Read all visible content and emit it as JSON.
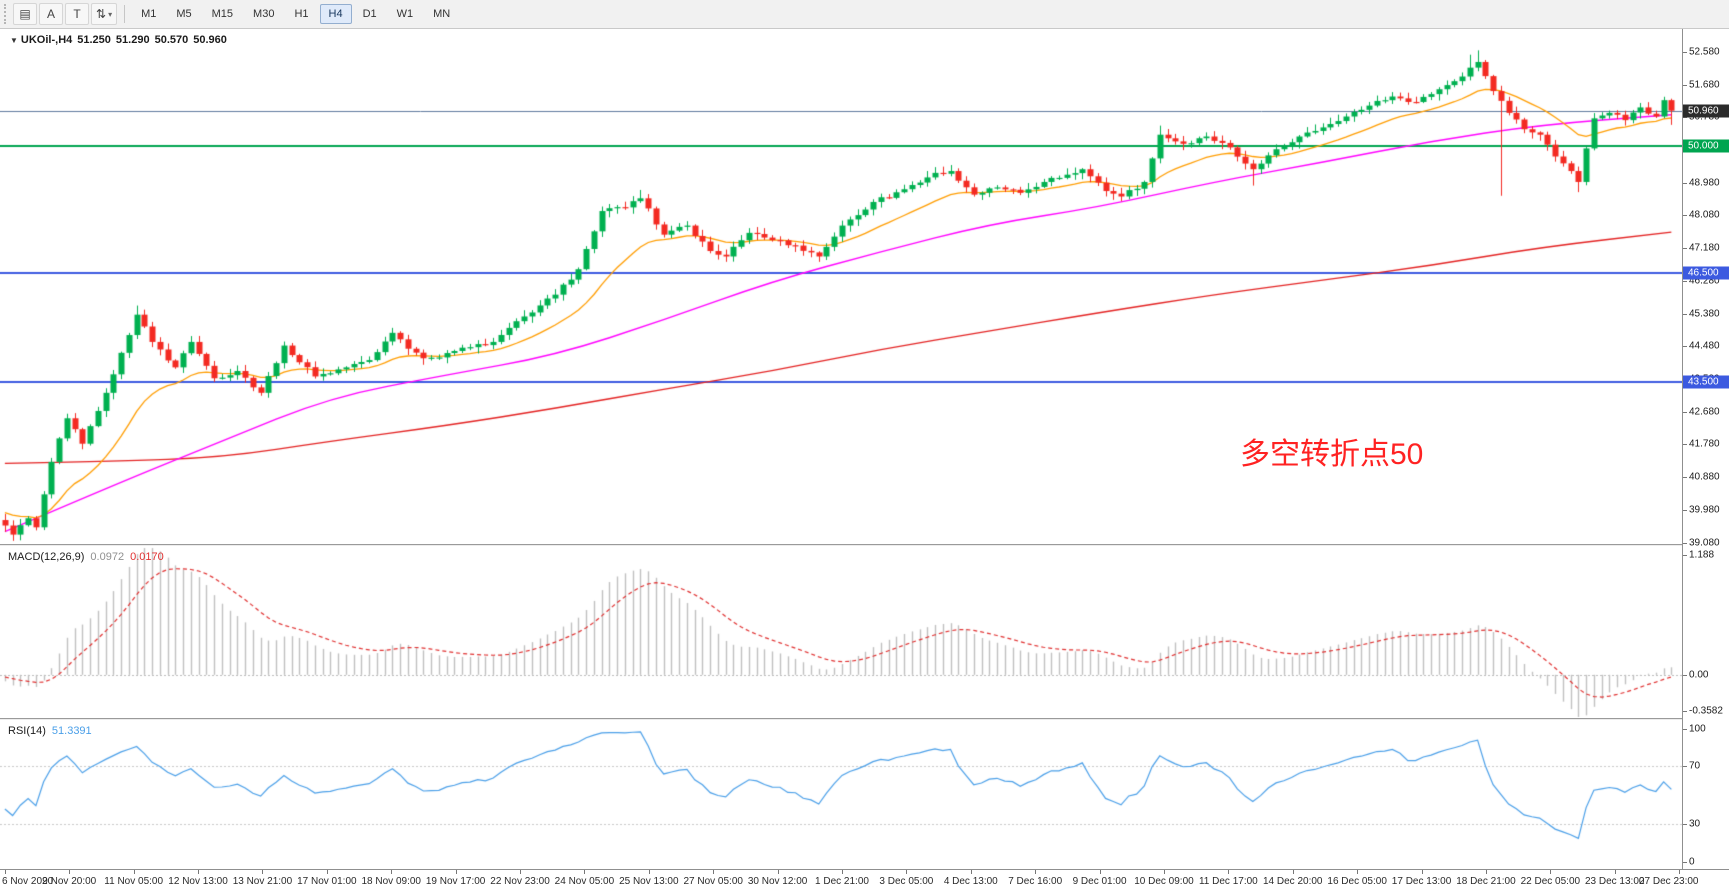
{
  "window": {
    "background": "#ffffff"
  },
  "toolbar": {
    "tools": [
      {
        "name": "charts-grid-tool",
        "glyph": "▤"
      },
      {
        "name": "text-label-a-tool",
        "glyph": "A"
      },
      {
        "name": "text-label-t-tool",
        "glyph": "T"
      },
      {
        "name": "objects-arrange-tool",
        "glyph": "⇅",
        "caret": "▾"
      }
    ],
    "timeframes": [
      {
        "label": "M1"
      },
      {
        "label": "M5"
      },
      {
        "label": "M15"
      },
      {
        "label": "M30"
      },
      {
        "label": "H1"
      },
      {
        "label": "H4",
        "active": true
      },
      {
        "label": "D1"
      },
      {
        "label": "W1"
      },
      {
        "label": "MN"
      }
    ]
  },
  "quote": {
    "dropdown_glyph": "▼",
    "symbol_period": "UKOil-,H4",
    "open": "51.250",
    "high": "51.290",
    "low": "50.570",
    "close": "50.960"
  },
  "annotation": {
    "text": "多空转折点50",
    "color": "#ff2222"
  },
  "macd_panel": {
    "label": "MACD(12,26,9)",
    "value_main": "0.0972",
    "value_signal": "0.0170",
    "axis_labels": [
      {
        "value": 1.188,
        "label": "1.188"
      },
      {
        "value": 0,
        "label": "0.00"
      },
      {
        "value": -0.3582,
        "label": "-0.3582"
      }
    ]
  },
  "rsi_panel": {
    "label": "RSI(14)",
    "value": "51.3391",
    "axis_labels": [
      {
        "value": 100,
        "label": "100"
      },
      {
        "value": 70,
        "label": "70"
      },
      {
        "value": 30,
        "label": "30"
      },
      {
        "value": 0,
        "label": "0"
      }
    ]
  },
  "price_axis": {
    "ticks": [
      {
        "value": 52.58,
        "label": "52.580"
      },
      {
        "value": 51.68,
        "label": "51.680"
      },
      {
        "value": 50.78,
        "label": "50.780"
      },
      {
        "value": 49.88,
        "label": "49.880"
      },
      {
        "value": 48.98,
        "label": "48.980"
      },
      {
        "value": 48.08,
        "label": "48.080"
      },
      {
        "value": 47.18,
        "label": "47.180"
      },
      {
        "value": 46.28,
        "label": "46.280"
      },
      {
        "value": 45.38,
        "label": "45.380"
      },
      {
        "value": 44.48,
        "label": "44.480"
      },
      {
        "value": 43.58,
        "label": "43.580"
      },
      {
        "value": 42.68,
        "label": "42.680"
      },
      {
        "value": 41.78,
        "label": "41.780"
      },
      {
        "value": 40.88,
        "label": "40.880"
      },
      {
        "value": 39.98,
        "label": "39.980"
      },
      {
        "value": 39.08,
        "label": "39.080"
      }
    ],
    "tags": [
      {
        "name": "current-price-tag",
        "value": 50.96,
        "label": "50.960",
        "bg": "#2b2b2b",
        "fg": "#ffffff"
      },
      {
        "name": "level-50.000-tag",
        "value": 50.0,
        "label": "50.000",
        "bg": "#00a550",
        "fg": "#ffffff"
      },
      {
        "name": "level-46.500-tag",
        "value": 46.5,
        "label": "46.500",
        "bg": "#3c5ae0",
        "fg": "#ffffff"
      },
      {
        "name": "level-43.500-tag",
        "value": 43.5,
        "label": "43.500",
        "bg": "#3c5ae0",
        "fg": "#ffffff"
      }
    ]
  },
  "time_axis": {
    "labels": [
      "6 Nov 2020",
      "9 Nov 20:00",
      "11 Nov 05:00",
      "12 Nov 13:00",
      "13 Nov 21:00",
      "17 Nov 01:00",
      "18 Nov 09:00",
      "19 Nov 17:00",
      "22 Nov 23:00",
      "24 Nov 05:00",
      "25 Nov 13:00",
      "27 Nov 05:00",
      "30 Nov 12:00",
      "1 Dec 21:00",
      "3 Dec 05:00",
      "4 Dec 13:00",
      "7 Dec 16:00",
      "9 Dec 01:00",
      "10 Dec 09:00",
      "11 Dec 17:00",
      "14 Dec 20:00",
      "16 Dec 05:00",
      "17 Dec 13:00",
      "18 Dec 21:00",
      "22 Dec 05:00",
      "23 Dec 13:00",
      "27 Dec 23:00"
    ]
  },
  "chart_data": {
    "type": "candlestick",
    "symbol": "UKOil-",
    "timeframe": "H4",
    "bar_count": 216,
    "price_axis_range": [
      39.08,
      52.58
    ],
    "current_bar": {
      "open": 51.25,
      "high": 51.29,
      "low": 50.57,
      "close": 50.96
    },
    "horizontal_lines": [
      {
        "value": 50.96,
        "color": "#5f7a9e",
        "width": 1,
        "role": "current-price-line"
      },
      {
        "value": 50.0,
        "color": "#00a550",
        "width": 2,
        "role": "key-level"
      },
      {
        "value": 46.5,
        "color": "#3c5ae0",
        "width": 2,
        "role": "key-level"
      },
      {
        "value": 43.5,
        "color": "#3c5ae0",
        "width": 2,
        "role": "key-level"
      }
    ],
    "close_waypoints": [
      [
        0,
        39.55
      ],
      [
        1,
        39.3
      ],
      [
        3,
        39.75
      ],
      [
        4,
        39.5
      ],
      [
        6,
        41.3
      ],
      [
        8,
        42.5
      ],
      [
        10,
        41.8
      ],
      [
        13,
        43.2
      ],
      [
        15,
        44.3
      ],
      [
        17,
        45.35
      ],
      [
        19,
        44.6
      ],
      [
        22,
        43.9
      ],
      [
        24,
        44.6
      ],
      [
        27,
        43.6
      ],
      [
        30,
        43.8
      ],
      [
        33,
        43.2
      ],
      [
        36,
        44.5
      ],
      [
        40,
        43.65
      ],
      [
        44,
        43.9
      ],
      [
        47,
        44.1
      ],
      [
        50,
        44.85
      ],
      [
        54,
        44.15
      ],
      [
        58,
        44.35
      ],
      [
        63,
        44.6
      ],
      [
        67,
        45.3
      ],
      [
        71,
        45.9
      ],
      [
        74,
        46.6
      ],
      [
        77,
        48.2
      ],
      [
        80,
        48.3
      ],
      [
        82,
        48.55
      ],
      [
        85,
        47.55
      ],
      [
        88,
        47.8
      ],
      [
        91,
        47.1
      ],
      [
        93,
        46.95
      ],
      [
        96,
        47.6
      ],
      [
        99,
        47.4
      ],
      [
        102,
        47.25
      ],
      [
        105,
        46.95
      ],
      [
        108,
        47.8
      ],
      [
        112,
        48.45
      ],
      [
        116,
        48.8
      ],
      [
        120,
        49.25
      ],
      [
        122,
        49.3
      ],
      [
        125,
        48.65
      ],
      [
        128,
        48.85
      ],
      [
        131,
        48.7
      ],
      [
        134,
        49.0
      ],
      [
        137,
        49.2
      ],
      [
        139,
        49.35
      ],
      [
        142,
        48.75
      ],
      [
        144,
        48.6
      ],
      [
        147,
        49.0
      ],
      [
        149,
        50.3
      ],
      [
        152,
        50.05
      ],
      [
        155,
        50.25
      ],
      [
        158,
        49.95
      ],
      [
        161,
        49.35
      ],
      [
        164,
        49.9
      ],
      [
        167,
        50.25
      ],
      [
        170,
        50.5
      ],
      [
        173,
        50.8
      ],
      [
        176,
        51.1
      ],
      [
        179,
        51.35
      ],
      [
        182,
        51.2
      ],
      [
        185,
        51.55
      ],
      [
        188,
        51.9
      ],
      [
        190,
        52.3
      ],
      [
        192,
        51.5
      ],
      [
        194,
        50.9
      ],
      [
        196,
        50.45
      ],
      [
        198,
        50.3
      ],
      [
        200,
        49.7
      ],
      [
        202,
        49.3
      ],
      [
        203,
        49.0
      ],
      [
        205,
        50.75
      ],
      [
        207,
        50.9
      ],
      [
        209,
        50.7
      ],
      [
        211,
        51.05
      ],
      [
        213,
        50.8
      ],
      [
        214,
        51.25
      ],
      [
        215,
        50.96
      ]
    ],
    "wick_overrides": {
      "17": {
        "high": 45.6
      },
      "82": {
        "high": 48.78
      },
      "149": {
        "high": 50.55
      },
      "161": {
        "low": 48.9
      },
      "189": {
        "high": 52.5
      },
      "190": {
        "high": 52.62
      },
      "193": {
        "low": 48.62
      },
      "203": {
        "low": 48.72
      }
    },
    "moving_averages": {
      "fast": {
        "color": "#ff9d00",
        "type": "ema",
        "period": 16
      },
      "mid": {
        "color": "#ff00ff",
        "waypoints": [
          [
            0,
            39.38
          ],
          [
            14,
            40.66
          ],
          [
            28,
            41.87
          ],
          [
            42,
            43.08
          ],
          [
            57,
            43.69
          ],
          [
            71,
            44.23
          ],
          [
            85,
            45.2
          ],
          [
            99,
            46.27
          ],
          [
            113,
            47.08
          ],
          [
            127,
            47.84
          ],
          [
            141,
            48.3
          ],
          [
            156,
            49.0
          ],
          [
            170,
            49.54
          ],
          [
            184,
            50.12
          ],
          [
            198,
            50.57
          ],
          [
            215,
            50.85
          ]
        ]
      },
      "slow": {
        "color": "#e32222",
        "waypoints": [
          [
            0,
            41.26
          ],
          [
            14,
            41.32
          ],
          [
            28,
            41.42
          ],
          [
            42,
            41.87
          ],
          [
            57,
            42.3
          ],
          [
            71,
            42.77
          ],
          [
            85,
            43.3
          ],
          [
            99,
            43.8
          ],
          [
            113,
            44.4
          ],
          [
            127,
            44.9
          ],
          [
            141,
            45.4
          ],
          [
            156,
            45.9
          ],
          [
            170,
            46.3
          ],
          [
            184,
            46.7
          ],
          [
            198,
            47.2
          ],
          [
            215,
            47.62
          ]
        ]
      }
    },
    "macd": {
      "fast": 12,
      "slow": 26,
      "signal_period": 9,
      "axis_range": [
        -0.3582,
        1.188
      ],
      "histogram_color": "#c0c0c0",
      "signal_color": "#e03030",
      "last_main": 0.0972,
      "last_signal": 0.017
    },
    "rsi": {
      "period": 14,
      "axis_range": [
        0,
        100
      ],
      "levels": [
        70,
        30
      ],
      "line_color": "#4a9fe8",
      "last_value": 51.3391
    },
    "candle_colors": {
      "up": "#00b050",
      "down": "#f32a22"
    }
  }
}
